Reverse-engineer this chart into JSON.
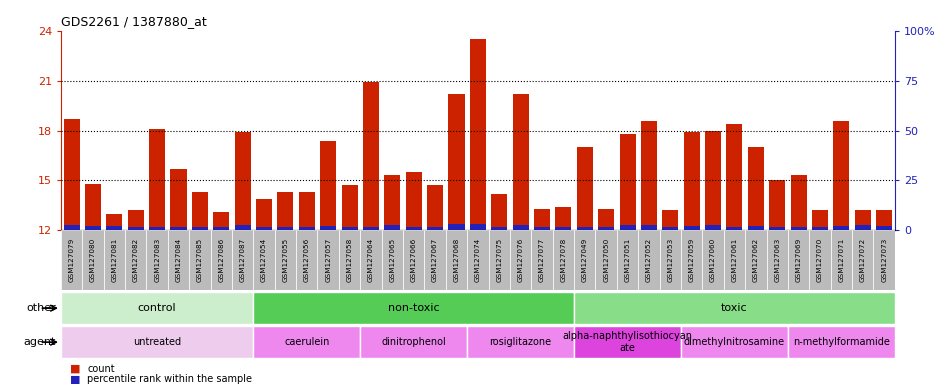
{
  "title": "GDS2261 / 1387880_at",
  "samples": [
    "GSM127079",
    "GSM127080",
    "GSM127081",
    "GSM127082",
    "GSM127083",
    "GSM127084",
    "GSM127085",
    "GSM127086",
    "GSM127087",
    "GSM127054",
    "GSM127055",
    "GSM127056",
    "GSM127057",
    "GSM127058",
    "GSM127064",
    "GSM127065",
    "GSM127066",
    "GSM127067",
    "GSM127068",
    "GSM127074",
    "GSM127075",
    "GSM127076",
    "GSM127077",
    "GSM127078",
    "GSM127049",
    "GSM127050",
    "GSM127051",
    "GSM127052",
    "GSM127053",
    "GSM127059",
    "GSM127060",
    "GSM127061",
    "GSM127062",
    "GSM127063",
    "GSM127069",
    "GSM127070",
    "GSM127071",
    "GSM127072",
    "GSM127073"
  ],
  "count_values": [
    18.7,
    14.8,
    13.0,
    13.2,
    18.1,
    15.7,
    14.3,
    13.1,
    17.9,
    13.9,
    14.3,
    14.3,
    17.4,
    14.7,
    20.9,
    15.3,
    15.5,
    14.7,
    20.2,
    23.5,
    14.2,
    20.2,
    13.3,
    13.4,
    17.0,
    13.3,
    17.8,
    18.6,
    13.2,
    17.9,
    18.0,
    18.4,
    17.0,
    15.0,
    15.3,
    13.2,
    18.6,
    13.2,
    13.2
  ],
  "percentile_values": [
    0.35,
    0.25,
    0.28,
    0.22,
    0.22,
    0.22,
    0.22,
    0.22,
    0.35,
    0.22,
    0.22,
    0.22,
    0.28,
    0.22,
    0.22,
    0.3,
    0.22,
    0.22,
    0.4,
    0.4,
    0.22,
    0.3,
    0.22,
    0.22,
    0.22,
    0.22,
    0.3,
    0.35,
    0.22,
    0.28,
    0.3,
    0.22,
    0.28,
    0.22,
    0.22,
    0.22,
    0.28,
    0.35,
    0.28
  ],
  "ymin": 12,
  "ymax": 24,
  "yright_min": 0,
  "yright_max": 100,
  "yticks_left": [
    12,
    15,
    18,
    21,
    24
  ],
  "yticks_right": [
    0,
    25,
    50,
    75,
    100
  ],
  "ytick_labels_right": [
    "0",
    "25",
    "50",
    "75",
    "100%"
  ],
  "bar_color_red": "#CC2200",
  "bar_color_blue": "#2222BB",
  "groups": [
    {
      "label": "control",
      "start": 0,
      "end": 9,
      "color": "#CCEECC"
    },
    {
      "label": "non-toxic",
      "start": 9,
      "end": 24,
      "color": "#55CC55"
    },
    {
      "label": "toxic",
      "start": 24,
      "end": 39,
      "color": "#88DD88"
    }
  ],
  "agents": [
    {
      "label": "untreated",
      "start": 0,
      "end": 9,
      "color": "#EECCEE"
    },
    {
      "label": "caerulein",
      "start": 9,
      "end": 14,
      "color": "#EE88EE"
    },
    {
      "label": "dinitrophenol",
      "start": 14,
      "end": 19,
      "color": "#EE88EE"
    },
    {
      "label": "rosiglitazone",
      "start": 19,
      "end": 24,
      "color": "#EE88EE"
    },
    {
      "label": "alpha-naphthylisothiocyan\nate",
      "start": 24,
      "end": 29,
      "color": "#DD44DD"
    },
    {
      "label": "dimethylnitrosamine",
      "start": 29,
      "end": 34,
      "color": "#EE88EE"
    },
    {
      "label": "n-methylformamide",
      "start": 34,
      "end": 39,
      "color": "#EE88EE"
    }
  ],
  "other_label": "other",
  "agent_label": "agent",
  "legend_red": "count",
  "legend_blue": "percentile rank within the sample",
  "dotted_lines": [
    15,
    18,
    21
  ],
  "tick_bg_color": "#CCCCCC",
  "plot_bg_color": "#FFFFFF"
}
